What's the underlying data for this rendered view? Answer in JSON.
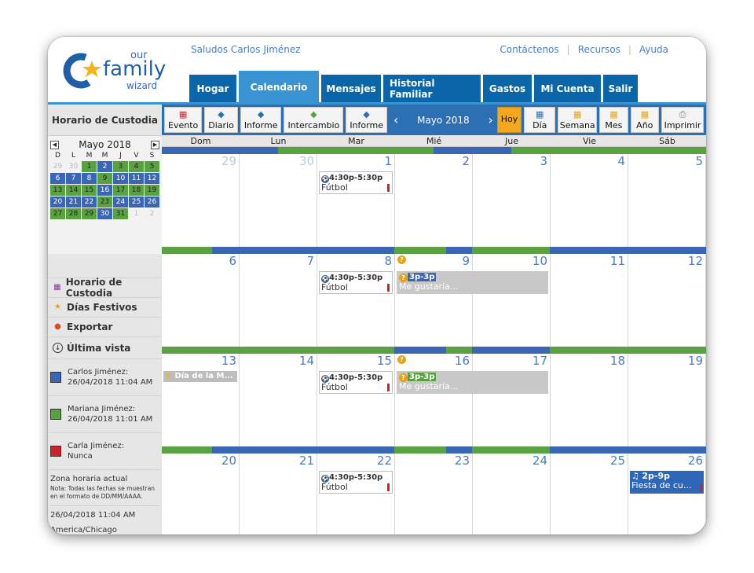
{
  "header": {
    "logo_our": "our",
    "logo_family": "family",
    "logo_wizard": "wizard",
    "greeting": "Saludos Carlos Jiménez",
    "links": [
      "Contáctenos",
      "Recursos",
      "Ayuda"
    ]
  },
  "nav": {
    "tabs": [
      "Hogar",
      "Calendario",
      "Mensajes",
      "Historial Familiar",
      "Gastos",
      "Mi Cuenta",
      "Salir"
    ],
    "active": "Calendario"
  },
  "sidebar": {
    "title": "Horario de Custodia",
    "minical": {
      "month": "Mayo 2018",
      "prev": "◀",
      "next": "▶",
      "weekdays": [
        "D",
        "L",
        "M",
        "M",
        "J",
        "V",
        "S"
      ],
      "weeks": [
        [
          "29",
          "30",
          "1",
          "2",
          "3",
          "4",
          "5"
        ],
        [
          "6",
          "7",
          "8",
          "9",
          "10",
          "11",
          "12"
        ],
        [
          "13",
          "14",
          "15",
          "16",
          "17",
          "18",
          "19"
        ],
        [
          "20",
          "21",
          "22",
          "23",
          "24",
          "25",
          "26"
        ],
        [
          "27",
          "28",
          "29",
          "30",
          "31",
          "1",
          "2"
        ]
      ]
    },
    "links": [
      "Horario de Custodia",
      "Días Festivos",
      "Exportar",
      "Última vista"
    ],
    "legend": [
      {
        "name": "Carlos Jiménez:",
        "when": "26/04/2018 11:04 AM",
        "color": "#3b66b4"
      },
      {
        "name": "Mariana Jiménez:",
        "when": "26/04/2018 11:01 AM",
        "color": "#5aa142"
      },
      {
        "name": "Carla Jiménez:",
        "when": "Nunca",
        "color": "#d0202b"
      }
    ],
    "timezone": {
      "label": "Zona horaria actual",
      "note": "Nota: Todas las fechas se muestran en el formato de DD/MM/AAAA.",
      "now": "26/04/2018 11:04 AM",
      "zone": "America/Chicago"
    }
  },
  "toolbar": {
    "buttons_left": [
      "Evento",
      "Diario",
      "Informe",
      "Intercambio",
      "Informe"
    ],
    "month": "Mayo 2018",
    "prev": "‹",
    "next": "›",
    "today": "Hoy",
    "buttons_right": [
      "Día",
      "Semana",
      "Mes",
      "Año",
      "Imprimir"
    ]
  },
  "calendar": {
    "weekdays": [
      "Dom",
      "Lun",
      "Mar",
      "Mié",
      "Jue",
      "Vie",
      "Sáb"
    ],
    "weeks": [
      [
        "29",
        "30",
        "1",
        "2",
        "3",
        "4",
        "5"
      ],
      [
        "6",
        "7",
        "8",
        "9",
        "10",
        "11",
        "12"
      ],
      [
        "13",
        "14",
        "15",
        "16",
        "17",
        "18",
        "19"
      ],
      [
        "20",
        "21",
        "22",
        "23",
        "24",
        "25",
        "26"
      ]
    ],
    "event_time": "4:30p-5:30p",
    "event_title": "Fútbol",
    "trade_time": "3p-3p",
    "trade_title": "Me gustaría...",
    "holiday": "Día de la M...",
    "party_time": "2p-9p",
    "party_title": "Fiesta de cu..."
  },
  "colors": {
    "blue": "#3b66b4",
    "green": "#5aa142",
    "nav": "#0a66a8",
    "nav_active": "#3a93d2",
    "today": "#f4a81f"
  }
}
